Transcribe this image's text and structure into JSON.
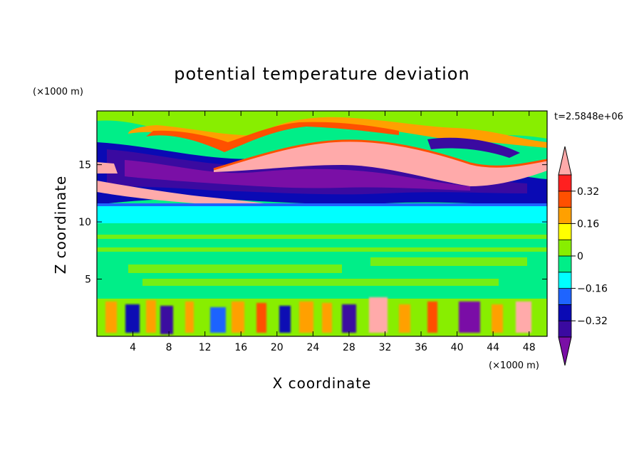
{
  "chart_data": {
    "type": "heatmap",
    "title": "potential temperature deviation",
    "xlabel": "X coordinate",
    "ylabel": "Z coordinate",
    "x_unit": "(×1000 m)",
    "y_unit": "(×1000 m)",
    "time_label": "t=2.5848e+06",
    "xlim": [
      0,
      50
    ],
    "ylim": [
      0,
      19.7
    ],
    "x_ticks": [
      4,
      8,
      12,
      16,
      20,
      24,
      28,
      32,
      36,
      40,
      44,
      48
    ],
    "y_ticks": [
      5,
      10,
      15
    ],
    "grid": false,
    "colorbar": {
      "position": "right",
      "levels": [
        -0.4,
        -0.32,
        -0.24,
        -0.16,
        -0.08,
        0,
        0.08,
        0.16,
        0.24,
        0.32,
        0.4
      ],
      "labeled_levels": [
        0.32,
        0.16,
        0,
        -0.16,
        -0.32
      ],
      "labels": [
        "0.32",
        "0.16",
        "0",
        "−0.16",
        "−0.32"
      ],
      "colors": [
        "#7a0fa6",
        "#3a0aa0",
        "#0a0ab4",
        "#1e64ff",
        "#00ffff",
        "#00ee88",
        "#88ee00",
        "#ffff00",
        "#ffa000",
        "#ff5000",
        "#ff2020",
        "#ffaaaa"
      ]
    },
    "layers": [
      {
        "z_range": [
          19.0,
          19.7
        ],
        "value": 0.0
      },
      {
        "z_range": [
          16.0,
          19.0
        ],
        "value": 0.25
      },
      {
        "z_range": [
          12.0,
          16.0
        ],
        "value": -0.35
      },
      {
        "z_range": [
          10.5,
          12.0
        ],
        "value": -0.12
      },
      {
        "z_range": [
          3.5,
          10.5
        ],
        "value": 0.05
      },
      {
        "z_range": [
          0.0,
          3.5
        ],
        "value": 0.0
      }
    ]
  }
}
